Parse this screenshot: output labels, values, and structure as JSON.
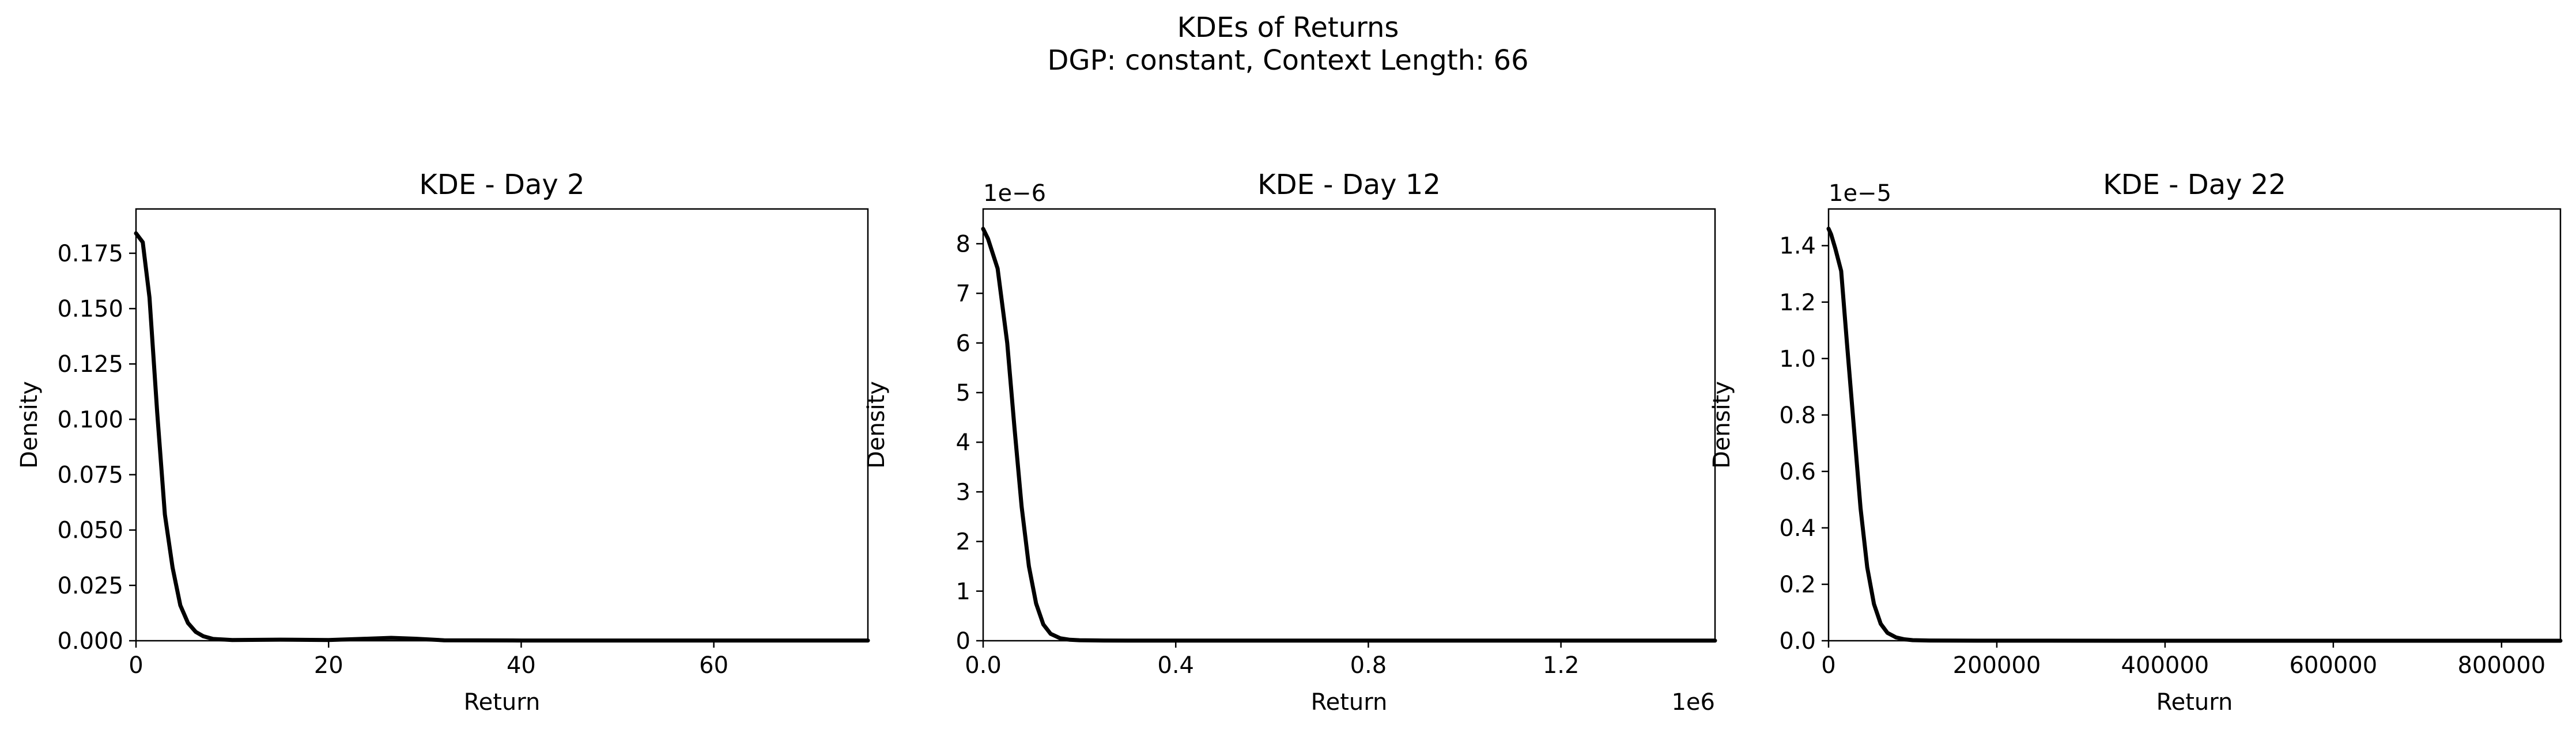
{
  "figure": {
    "title_line1": "KDEs of Returns",
    "title_line2": "DGP: constant, Context Length: 66"
  },
  "chart_data": [
    {
      "type": "line",
      "title": "KDE - Day 2",
      "xlabel": "Return",
      "ylabel": "Density",
      "xlim": [
        0,
        76
      ],
      "ylim": [
        0,
        0.195
      ],
      "x_offset_text": "",
      "y_offset_text": "",
      "xticks": [
        0,
        20,
        40,
        60
      ],
      "xtick_labels": [
        "0",
        "20",
        "40",
        "60"
      ],
      "yticks": [
        0,
        0.025,
        0.05,
        0.075,
        0.1,
        0.125,
        0.15,
        0.175
      ],
      "ytick_labels": [
        "0.000",
        "0.025",
        "0.050",
        "0.075",
        "0.100",
        "0.125",
        "0.150",
        "0.175"
      ],
      "series": [
        {
          "name": "KDE",
          "x": [
            0,
            0.7,
            1.4,
            2.2,
            3.0,
            3.8,
            4.6,
            5.4,
            6.2,
            7.0,
            8.0,
            10,
            15,
            20,
            24,
            26.5,
            29,
            32,
            40,
            50,
            60,
            76
          ],
          "y": [
            0.184,
            0.18,
            0.155,
            0.103,
            0.057,
            0.033,
            0.016,
            0.008,
            0.004,
            0.002,
            0.0008,
            0.0003,
            0.0005,
            0.0003,
            0.0009,
            0.0013,
            0.0009,
            0.0002,
            0.0001,
            0.0001,
            0.0001,
            0.0001
          ]
        }
      ]
    },
    {
      "type": "line",
      "title": "KDE - Day 12",
      "xlabel": "Return",
      "ylabel": "Density",
      "xlim": [
        0,
        1520000
      ],
      "ylim": [
        0,
        8.7e-06
      ],
      "x_offset_text": "1e6",
      "y_offset_text": "1e−6",
      "xticks": [
        0,
        400000,
        800000,
        1200000
      ],
      "xtick_labels": [
        "0.0",
        "0.4",
        "0.8",
        "1.2"
      ],
      "yticks": [
        0,
        1e-06,
        2e-06,
        3e-06,
        4e-06,
        5e-06,
        6e-06,
        7e-06,
        8e-06
      ],
      "ytick_labels": [
        "0",
        "1",
        "2",
        "3",
        "4",
        "5",
        "6",
        "7",
        "8"
      ],
      "series": [
        {
          "name": "KDE",
          "x": [
            0,
            10000,
            30000,
            50000,
            65000,
            80000,
            95000,
            110000,
            125000,
            140000,
            160000,
            180000,
            200000,
            250000,
            300000,
            400000,
            800000,
            1200000,
            1520000
          ],
          "y": [
            8.3e-06,
            8.1e-06,
            7.5e-06,
            6e-06,
            4.3e-06,
            2.7e-06,
            1.5e-06,
            7.5e-07,
            3.3e-07,
            1.4e-07,
            5e-08,
            2e-08,
            1e-08,
            5e-09,
            3e-09,
            2e-09,
            2e-09,
            2e-09,
            2e-09
          ]
        }
      ]
    },
    {
      "type": "line",
      "title": "KDE - Day 22",
      "xlabel": "Return",
      "ylabel": "Density",
      "xlim": [
        0,
        870000
      ],
      "ylim": [
        0,
        1.53e-05
      ],
      "x_offset_text": "",
      "y_offset_text": "1e−5",
      "xticks": [
        0,
        200000,
        400000,
        600000,
        800000
      ],
      "xtick_labels": [
        "0",
        "200000",
        "400000",
        "600000",
        "800000"
      ],
      "yticks": [
        0,
        2e-06,
        4e-06,
        6e-06,
        8e-06,
        1e-05,
        1.2e-05,
        1.4e-05
      ],
      "ytick_labels": [
        "0.0",
        "0.2",
        "0.4",
        "0.6",
        "0.8",
        "1.0",
        "1.2",
        "1.4"
      ],
      "series": [
        {
          "name": "KDE",
          "x": [
            0,
            3000,
            8000,
            15000,
            22000,
            30000,
            38000,
            46000,
            54000,
            62000,
            70000,
            80000,
            90000,
            100000,
            120000,
            150000,
            200000,
            400000,
            600000,
            870000
          ],
          "y": [
            1.46e-05,
            1.44e-05,
            1.39e-05,
            1.31e-05,
            1.05e-05,
            7.6e-06,
            4.7e-06,
            2.6e-06,
            1.3e-06,
            6e-07,
            2.8e-07,
            1.2e-07,
            5e-08,
            2e-08,
            8e-09,
            4e-09,
            2e-09,
            1e-09,
            1e-09,
            1e-09
          ]
        }
      ]
    }
  ]
}
